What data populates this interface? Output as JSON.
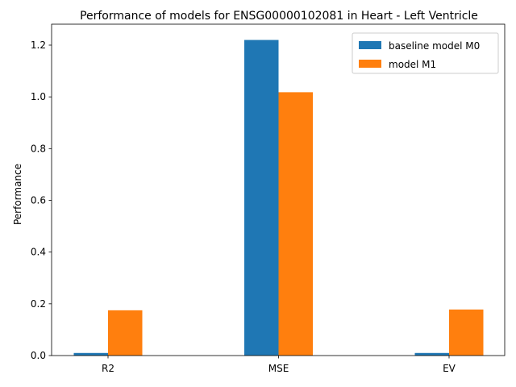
{
  "chart_data": {
    "type": "bar",
    "title": "Performance of models for ENSG00000102081 in Heart - Left Ventricle",
    "xlabel": "",
    "ylabel": "Performance",
    "categories": [
      "R2",
      "MSE",
      "EV"
    ],
    "series": [
      {
        "name": "baseline model M0",
        "color": "#1f77b4",
        "values": [
          0.01,
          1.22,
          0.01
        ]
      },
      {
        "name": "model M1",
        "color": "#ff7f0e",
        "values": [
          0.175,
          1.018,
          0.178
        ]
      }
    ],
    "ylim": [
      0,
      1.281
    ],
    "yticks": [
      0.0,
      0.2,
      0.4,
      0.6,
      0.8,
      1.0,
      1.2
    ],
    "ytick_labels": [
      "0.0",
      "0.2",
      "0.4",
      "0.6",
      "0.8",
      "1.0",
      "1.2"
    ],
    "grid": false,
    "legend_position": "top-right"
  }
}
